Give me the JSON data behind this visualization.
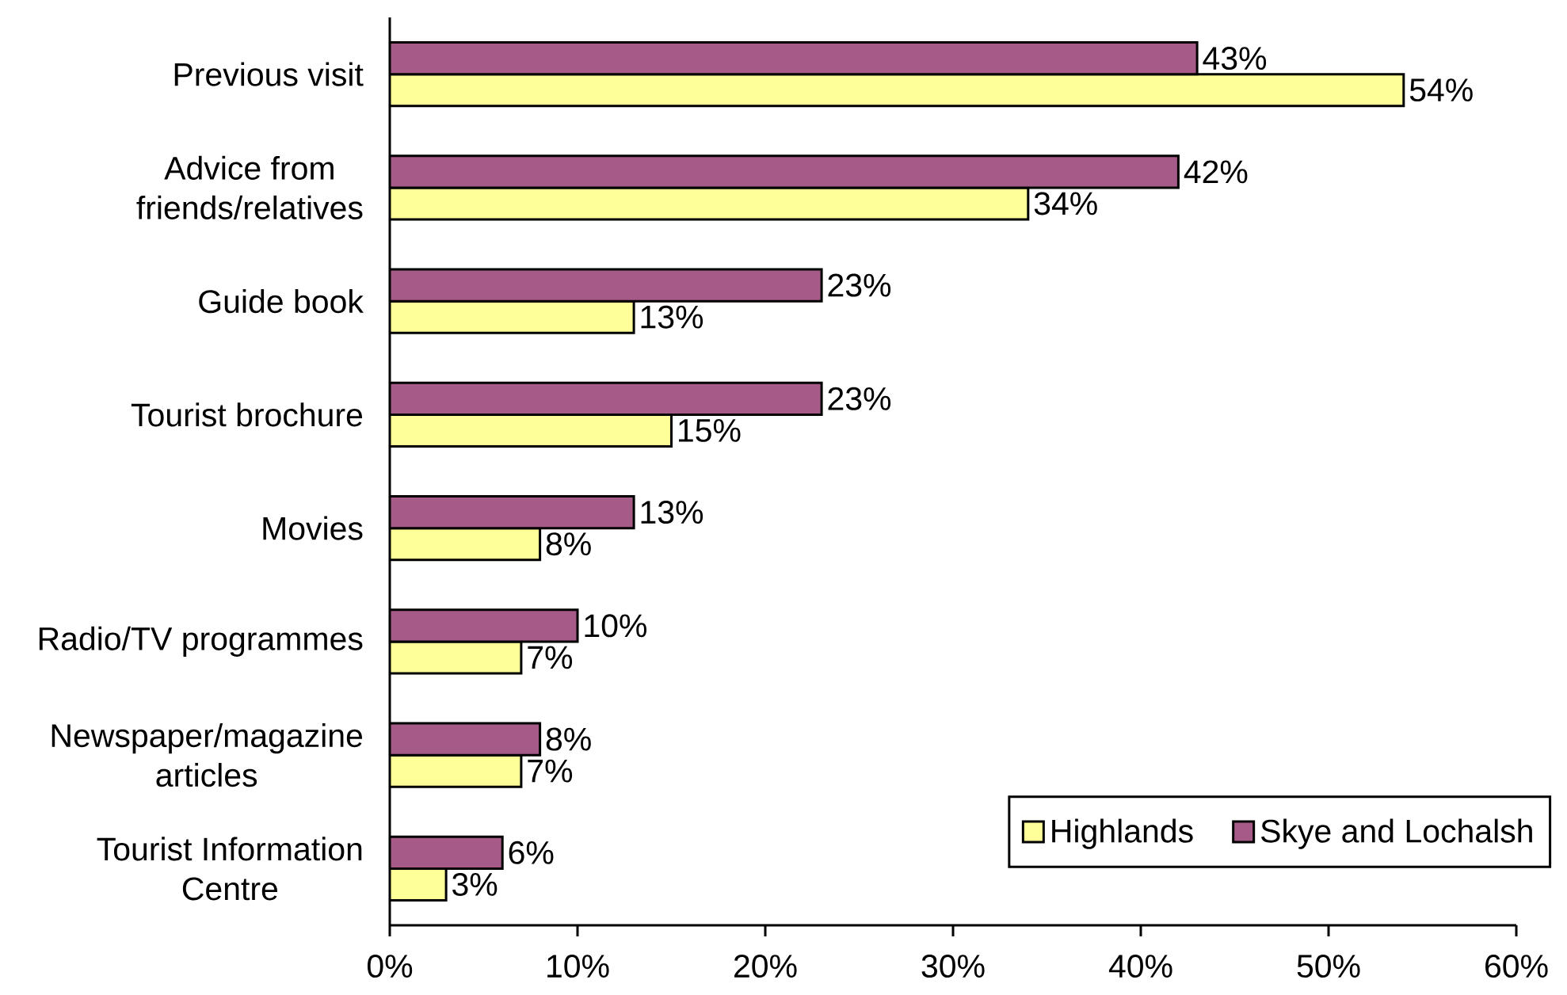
{
  "chart_data": {
    "type": "bar",
    "orientation": "horizontal",
    "categories": [
      "Previous visit",
      "Advice from friends/relatives",
      "Guide book",
      "Tourist brochure",
      "Movies",
      "Radio/TV programmes",
      "Newspaper/magazine articles",
      "Tourist Information Centre"
    ],
    "series": [
      {
        "name": "Highlands",
        "color": "#ffff99",
        "values": [
          54,
          34,
          13,
          15,
          8,
          7,
          7,
          3
        ],
        "value_labels": [
          "54%",
          "34%",
          "13%",
          "15%",
          "8%",
          "7%",
          "7%",
          "3%"
        ]
      },
      {
        "name": "Skye and Lochalsh",
        "color": "#a65a88",
        "values": [
          43,
          42,
          23,
          23,
          13,
          10,
          8,
          6
        ],
        "value_labels": [
          "43%",
          "42%",
          "23%",
          "23%",
          "13%",
          "10%",
          "8%",
          "6%"
        ]
      }
    ],
    "xlim": [
      0,
      60
    ],
    "xticks": [
      {
        "value": 0,
        "label": "0%"
      },
      {
        "value": 10,
        "label": "10%"
      },
      {
        "value": 20,
        "label": "20%"
      },
      {
        "value": 30,
        "label": "30%"
      },
      {
        "value": 40,
        "label": "40%"
      },
      {
        "value": 50,
        "label": "50%"
      },
      {
        "value": 60,
        "label": "60%"
      }
    ],
    "legend": "bottom right"
  }
}
